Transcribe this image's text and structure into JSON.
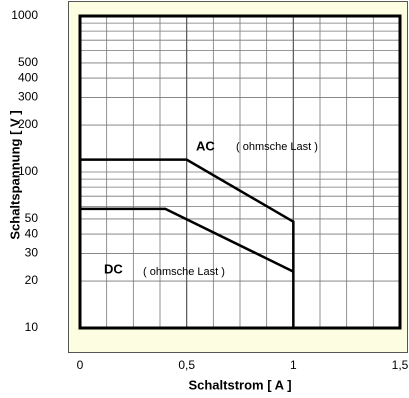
{
  "chart_data": {
    "type": "line",
    "x_label": "Schaltstrom [ A ]",
    "y_label": "Schaltspannung [ V ]",
    "yscale": "log",
    "xlim": [
      0,
      1.5
    ],
    "ylim": [
      10,
      1000
    ],
    "xticks": [
      0,
      {
        "value": 0.5,
        "label": "0,5"
      },
      1,
      {
        "value": 1.5,
        "label": "1,5"
      }
    ],
    "xminor_ticks": [
      0.125,
      0.25,
      0.375,
      0.625,
      0.75,
      0.875,
      1.125,
      1.25,
      1.375
    ],
    "yticks": [
      10,
      20,
      30,
      40,
      50,
      100,
      200,
      300,
      400,
      500,
      1000
    ],
    "yminor_ticks": [
      60,
      70,
      80,
      90,
      600,
      700,
      800,
      900
    ],
    "grid": true,
    "series": [
      {
        "name": "AC",
        "color": "#000000",
        "x": [
          0,
          0.5,
          1,
          1
        ],
        "values": [
          120,
          120,
          48,
          10
        ]
      },
      {
        "name": "DC",
        "color": "#000000",
        "x": [
          0,
          0.4,
          1
        ],
        "values": [
          58,
          58,
          23
        ]
      }
    ],
    "annotations": [
      "( ohmsche Last )",
      "( ohmsche Last )"
    ]
  }
}
